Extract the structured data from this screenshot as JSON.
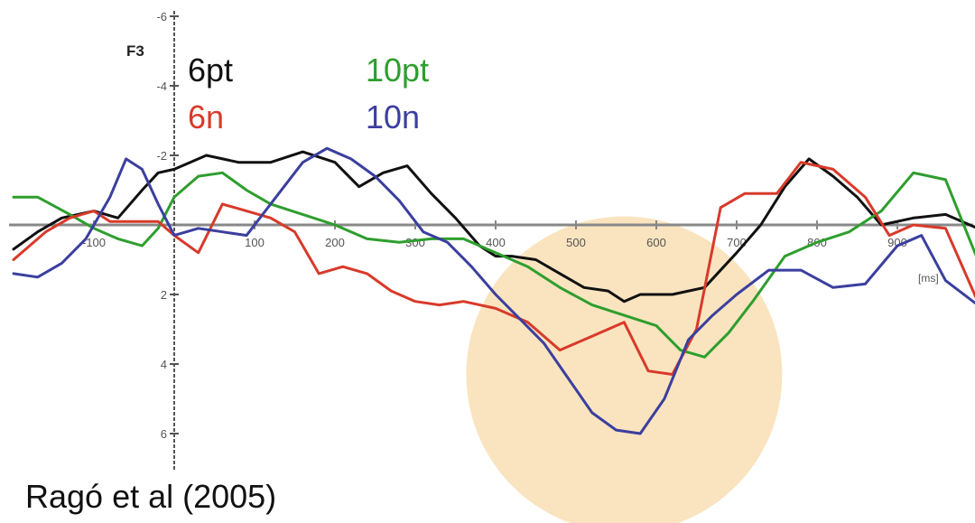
{
  "chart_data": {
    "type": "line",
    "channel": "F3",
    "x_unit": "[ms]",
    "xlim": [
      -200,
      1000
    ],
    "ylim": [
      -6,
      7
    ],
    "y_inverted": true,
    "x_ticks": [
      -100,
      100,
      200,
      300,
      400,
      500,
      600,
      700,
      800,
      900
    ],
    "x_tick_labels": [
      "-100",
      "100",
      "200",
      "300",
      "400",
      "500",
      "600",
      "700",
      "800",
      "900"
    ],
    "y_ticks": [
      -6,
      -4,
      -2,
      2,
      4,
      6
    ],
    "y_tick_labels": [
      "-6",
      "-4",
      "-2",
      "2",
      "4",
      "6"
    ],
    "highlight_circle": {
      "center_x": 560,
      "center_y": 4.3,
      "color": "#f9dfb4"
    },
    "series": [
      {
        "name": "6pt",
        "color": "#111111",
        "x": [
          -200,
          -170,
          -140,
          -100,
          -70,
          -40,
          -20,
          0,
          40,
          80,
          120,
          160,
          200,
          230,
          260,
          290,
          320,
          350,
          380,
          400,
          420,
          450,
          480,
          510,
          540,
          560,
          580,
          620,
          660,
          700,
          730,
          760,
          790,
          820,
          850,
          880,
          920,
          960,
          1000
        ],
        "y": [
          0.7,
          0.2,
          -0.2,
          -0.4,
          -0.2,
          -1.0,
          -1.5,
          -1.6,
          -2.0,
          -1.8,
          -1.8,
          -2.1,
          -1.8,
          -1.1,
          -1.5,
          -1.7,
          -0.9,
          -0.2,
          0.6,
          0.9,
          0.9,
          1.0,
          1.4,
          1.8,
          1.9,
          2.2,
          2.0,
          2.0,
          1.8,
          0.8,
          0.0,
          -1.1,
          -1.9,
          -1.4,
          -0.8,
          0.0,
          -0.2,
          -0.3,
          0.1
        ]
      },
      {
        "name": "10pt",
        "color": "#2e9e2e",
        "x": [
          -200,
          -170,
          -130,
          -100,
          -70,
          -40,
          -20,
          0,
          30,
          60,
          90,
          120,
          160,
          200,
          240,
          280,
          320,
          360,
          400,
          440,
          480,
          520,
          560,
          600,
          630,
          660,
          690,
          720,
          760,
          800,
          840,
          880,
          920,
          960,
          1000
        ],
        "y": [
          -0.8,
          -0.8,
          -0.3,
          0.1,
          0.4,
          0.6,
          0.1,
          -0.8,
          -1.4,
          -1.5,
          -1.0,
          -0.6,
          -0.3,
          0.0,
          0.4,
          0.5,
          0.4,
          0.4,
          0.8,
          1.2,
          1.8,
          2.3,
          2.6,
          2.9,
          3.6,
          3.8,
          3.1,
          2.2,
          0.9,
          0.5,
          0.2,
          -0.4,
          -1.5,
          -1.3,
          1.0
        ]
      },
      {
        "name": "6n",
        "color": "#d83a2a",
        "x": [
          -200,
          -160,
          -130,
          -100,
          -80,
          -50,
          -20,
          0,
          30,
          60,
          90,
          120,
          150,
          180,
          210,
          240,
          270,
          300,
          330,
          360,
          400,
          440,
          480,
          520,
          560,
          590,
          620,
          650,
          680,
          710,
          750,
          780,
          820,
          860,
          890,
          920,
          960,
          1000
        ],
        "y": [
          1.0,
          0.2,
          -0.2,
          -0.4,
          -0.1,
          -0.1,
          -0.1,
          0.3,
          0.8,
          -0.6,
          -0.4,
          -0.2,
          0.2,
          1.4,
          1.2,
          1.4,
          1.9,
          2.2,
          2.3,
          2.2,
          2.4,
          2.8,
          3.6,
          3.2,
          2.8,
          4.2,
          4.3,
          3.0,
          -0.5,
          -0.9,
          -0.9,
          -1.8,
          -1.6,
          -0.8,
          0.3,
          0.0,
          0.1,
          2.2
        ]
      },
      {
        "name": "10n",
        "color": "#3b3f9e",
        "x": [
          -200,
          -170,
          -140,
          -110,
          -80,
          -60,
          -40,
          -20,
          0,
          30,
          60,
          90,
          130,
          160,
          190,
          220,
          250,
          280,
          310,
          340,
          370,
          400,
          430,
          460,
          490,
          520,
          550,
          580,
          610,
          640,
          670,
          700,
          740,
          780,
          820,
          860,
          900,
          930,
          960,
          1000
        ],
        "y": [
          1.4,
          1.5,
          1.1,
          0.4,
          -0.8,
          -1.9,
          -1.6,
          -0.6,
          0.3,
          0.1,
          0.2,
          0.3,
          -0.9,
          -1.8,
          -2.2,
          -1.9,
          -1.4,
          -0.7,
          0.2,
          0.5,
          1.2,
          2.0,
          2.7,
          3.4,
          4.4,
          5.4,
          5.9,
          6.0,
          5.0,
          3.3,
          2.6,
          2.0,
          1.3,
          1.3,
          1.8,
          1.7,
          0.6,
          0.3,
          1.6,
          2.3
        ]
      }
    ]
  },
  "legend": [
    {
      "label": "6pt",
      "color": "#111111"
    },
    {
      "label": "10pt",
      "color": "#2e9e2e"
    },
    {
      "label": "6n",
      "color": "#d83a2a"
    },
    {
      "label": "10n",
      "color": "#3b3f9e"
    }
  ],
  "citation": "Ragó et al (2005)"
}
